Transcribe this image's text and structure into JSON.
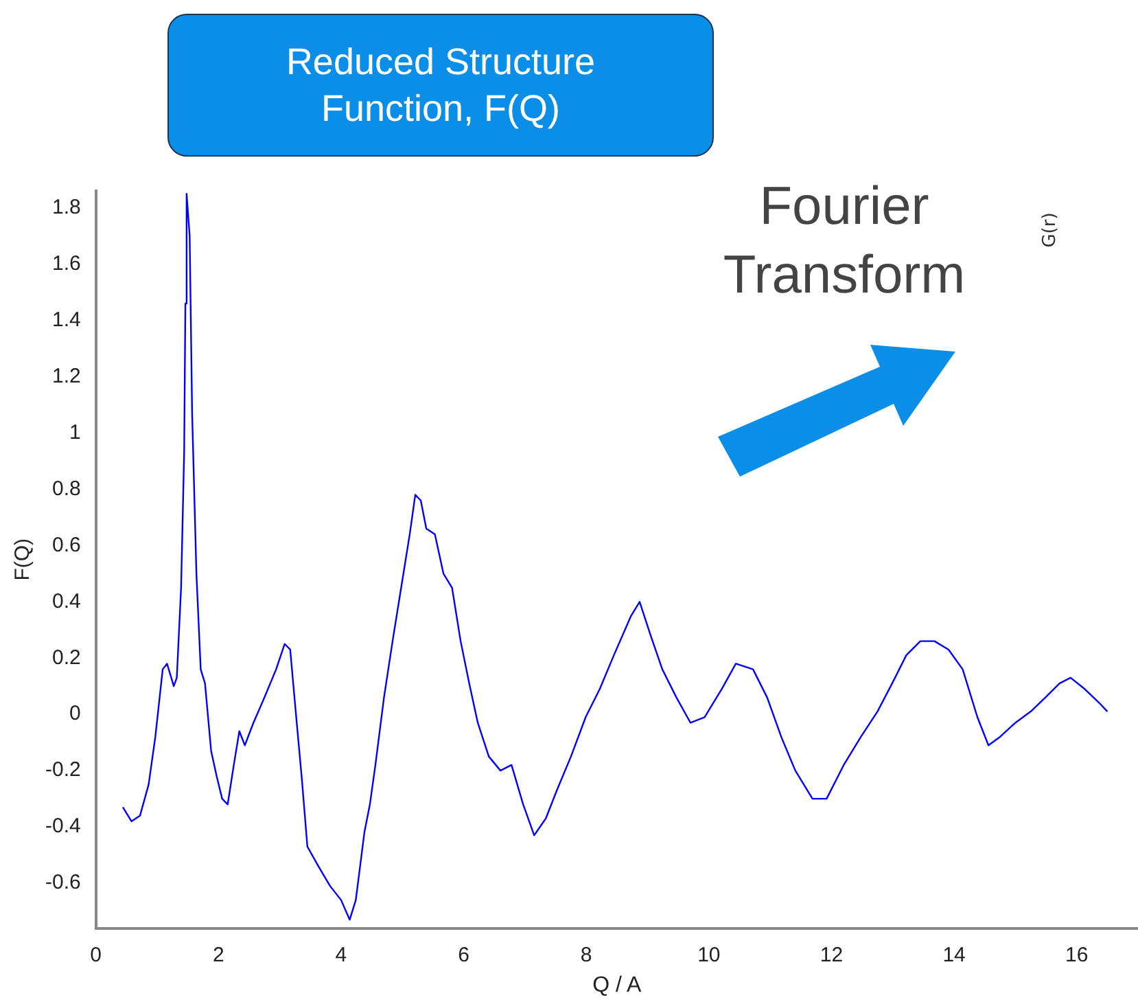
{
  "chart_data": [
    {
      "type": "line",
      "title": "Reduced Structure Function, F(Q)",
      "xlabel": "Q / A",
      "ylabel": "F(Q)",
      "annotations": [
        "Fourier Transform"
      ],
      "xlim": [
        0,
        17
      ],
      "ylim": [
        -0.76,
        1.86
      ],
      "xticks": [
        0,
        2,
        4,
        6,
        8,
        10,
        12,
        14,
        16
      ],
      "yticks": [
        -0.6,
        -0.4,
        -0.2,
        0,
        0.2,
        0.4,
        0.6,
        0.8,
        1,
        1.2,
        1.4,
        1.6,
        1.8
      ],
      "grid": false,
      "legend": false,
      "marker": "none",
      "line_style": "solid",
      "series": [
        {
          "color": "#0000ff",
          "x": [
            0.44,
            0.58,
            0.72,
            0.86,
            0.97,
            1.09,
            1.16,
            1.23,
            1.27,
            1.32,
            1.39,
            1.44,
            1.46,
            1.48,
            1.53,
            1.57,
            1.64,
            1.71,
            1.78,
            1.88,
            1.97,
            2.06,
            2.15,
            2.25,
            2.34,
            2.43,
            2.57,
            2.75,
            2.94,
            3.08,
            3.17,
            3.26,
            3.36,
            3.45,
            3.63,
            3.82,
            4.0,
            4.14,
            4.24,
            4.38,
            4.47,
            4.56,
            4.7,
            4.84,
            4.98,
            5.12,
            5.21,
            5.3,
            5.39,
            5.53,
            5.67,
            5.81,
            5.95,
            6.09,
            6.23,
            6.41,
            6.6,
            6.78,
            6.97,
            7.15,
            7.34,
            7.52,
            7.75,
            7.99,
            8.22,
            8.45,
            8.73,
            8.87,
            9.05,
            9.24,
            9.47,
            9.7,
            9.93,
            10.21,
            10.44,
            10.72,
            10.95,
            11.18,
            11.41,
            11.69,
            11.92,
            12.2,
            12.48,
            12.75,
            12.99,
            13.22,
            13.45,
            13.68,
            13.91,
            14.14,
            14.38,
            14.56,
            14.75,
            15.0,
            15.25,
            15.49,
            15.72,
            15.9,
            16.13,
            16.37,
            16.5
          ],
          "values": [
            -0.33,
            -0.38,
            -0.36,
            -0.25,
            -0.08,
            0.16,
            0.18,
            0.13,
            0.1,
            0.13,
            0.45,
            0.93,
            1.46,
            1.85,
            1.7,
            1.07,
            0.5,
            0.16,
            0.11,
            -0.13,
            -0.22,
            -0.3,
            -0.32,
            -0.18,
            -0.06,
            -0.11,
            -0.03,
            0.06,
            0.16,
            0.25,
            0.23,
            0.01,
            -0.23,
            -0.47,
            -0.54,
            -0.61,
            -0.66,
            -0.73,
            -0.66,
            -0.42,
            -0.32,
            -0.18,
            0.06,
            0.26,
            0.45,
            0.64,
            0.78,
            0.76,
            0.66,
            0.64,
            0.5,
            0.45,
            0.26,
            0.11,
            -0.03,
            -0.15,
            -0.2,
            -0.18,
            -0.32,
            -0.43,
            -0.37,
            -0.27,
            -0.15,
            -0.01,
            0.09,
            0.21,
            0.35,
            0.4,
            0.28,
            0.16,
            0.06,
            -0.03,
            -0.01,
            0.09,
            0.18,
            0.16,
            0.06,
            -0.08,
            -0.2,
            -0.3,
            -0.3,
            -0.18,
            -0.08,
            0.01,
            0.11,
            0.21,
            0.26,
            0.26,
            0.23,
            0.16,
            -0.01,
            -0.11,
            -0.08,
            -0.03,
            0.01,
            0.06,
            0.11,
            0.13,
            0.09,
            0.04,
            0.01
          ]
        }
      ]
    },
    {
      "type": "other",
      "ylabel": "G(r)"
    }
  ]
}
